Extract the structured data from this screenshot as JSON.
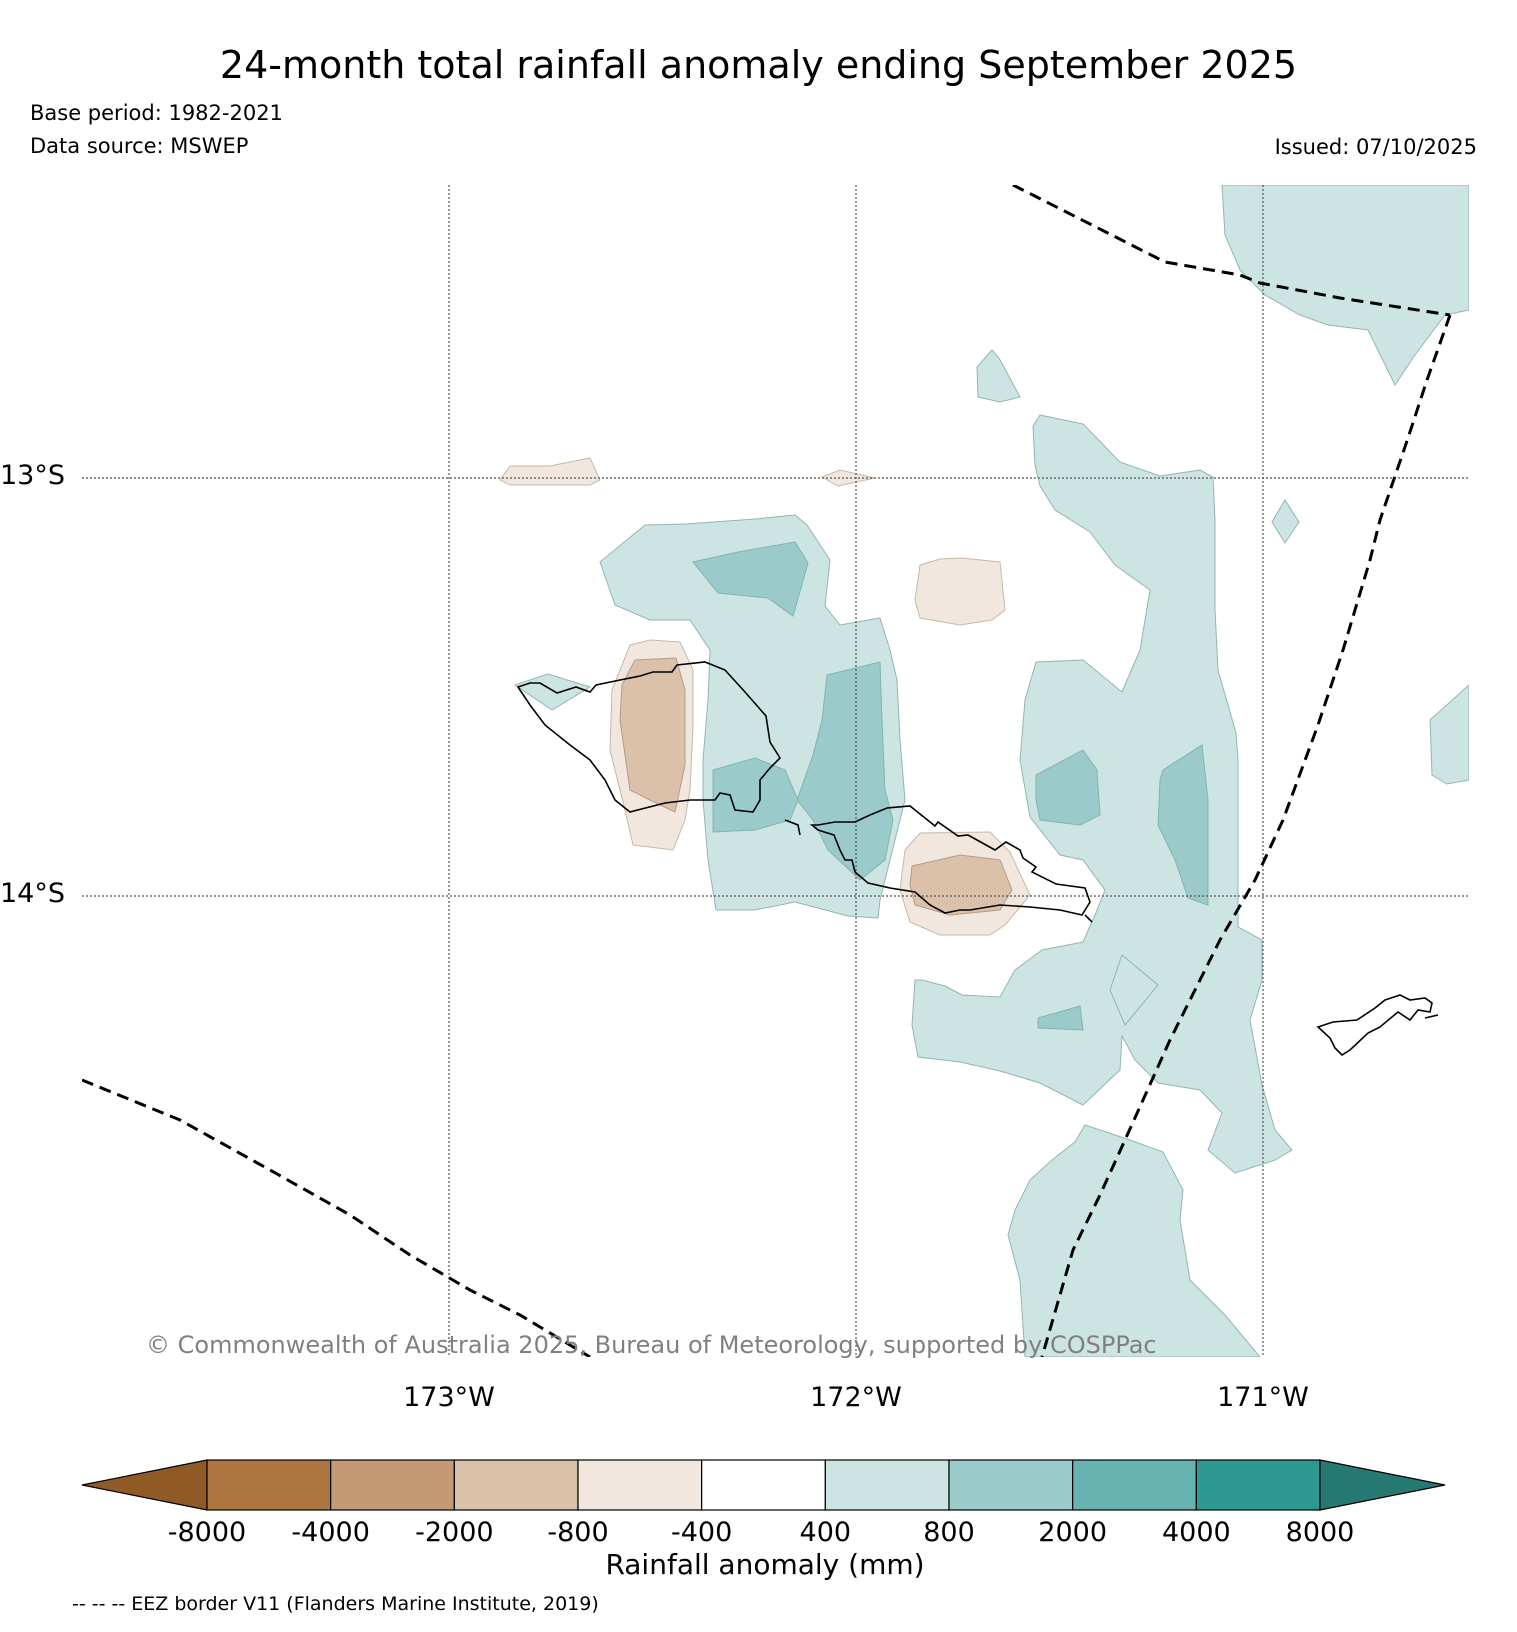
{
  "title": "24-month total rainfall anomaly ending September 2025",
  "base_period": "Base period: 1982-2021",
  "data_source": "Data source: MSWEP",
  "issued": "Issued: 07/10/2025",
  "copyright": "© Commonwealth of Australia 2025, Bureau of Meteorology, supported by COSPPac",
  "map": {
    "latitude_labels": [
      "13°S",
      "14°S"
    ],
    "longitude_labels": [
      "173°W",
      "172°W",
      "171°W"
    ],
    "region_shown": "Samoa",
    "overlays": [
      "coastlines",
      "EEZ border (dashed)",
      "graticule (dotted)"
    ]
  },
  "colorbar": {
    "label": "Rainfall anomaly (mm)",
    "ticks": [
      "-8000",
      "-4000",
      "-2000",
      "-800",
      "-400",
      "400",
      "800",
      "2000",
      "4000",
      "8000"
    ],
    "colors": {
      "below_-8000": "#8f5a26",
      "-8000_-4000": "#ad7640",
      "-4000_-2000": "#c39a73",
      "-2000_-800": "#dbc1aa",
      "-800_-400": "#f1e7de",
      "-400_400": "#ffffff",
      "400_800": "#cce5e3",
      "800_2000": "#9acbca",
      "2000_4000": "#66b3b1",
      "4000_8000": "#2e9893",
      "above_8000": "#267873"
    }
  },
  "footnote": "-- -- -- EEZ border V11 (Flanders Marine Institute, 2019)"
}
